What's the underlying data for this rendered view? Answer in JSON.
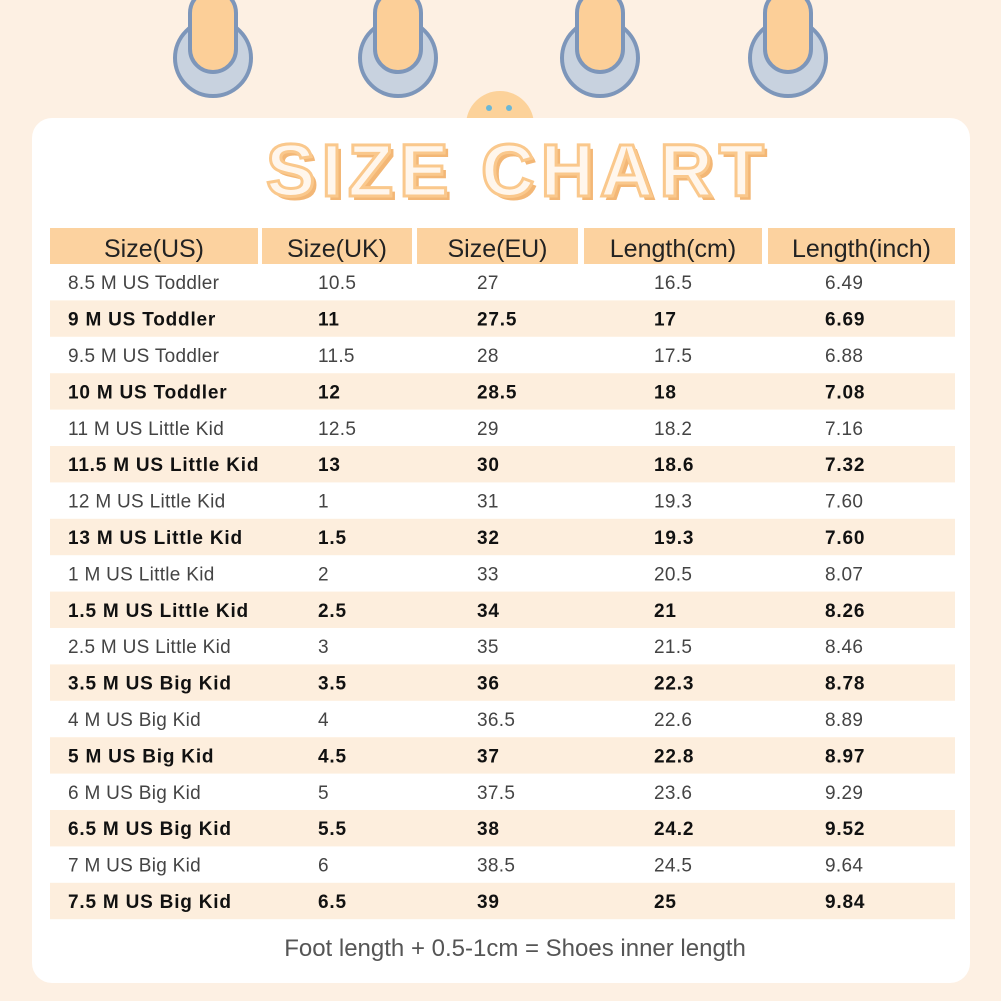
{
  "title": "SIZE CHART",
  "table": {
    "headers": [
      "Size(US)",
      "Size(UK)",
      "Size(EU)",
      "Length(cm)",
      "Length(inch)"
    ],
    "rows": [
      [
        "8.5 M US Toddler",
        "10.5",
        "27",
        "16.5",
        "6.49"
      ],
      [
        "9 M US Toddler",
        "11",
        "27.5",
        "17",
        "6.69"
      ],
      [
        "9.5 M US Toddler",
        "11.5",
        "28",
        "17.5",
        "6.88"
      ],
      [
        "10 M US Toddler",
        "12",
        "28.5",
        "18",
        "7.08"
      ],
      [
        "11 M US Little Kid",
        "12.5",
        "29",
        "18.2",
        "7.16"
      ],
      [
        "11.5 M US Little Kid",
        "13",
        "30",
        "18.6",
        "7.32"
      ],
      [
        "12 M US Little Kid",
        "1",
        "31",
        "19.3",
        "7.60"
      ],
      [
        "13 M US Little Kid",
        "1.5",
        "32",
        "19.3",
        "7.60"
      ],
      [
        "1 M US Little Kid",
        "2",
        "33",
        "20.5",
        "8.07"
      ],
      [
        "1.5 M US Little Kid",
        "2.5",
        "34",
        "21",
        "8.26"
      ],
      [
        "2.5 M US Little Kid",
        "3",
        "35",
        "21.5",
        "8.46"
      ],
      [
        "3.5 M US Big Kid",
        "3.5",
        "36",
        "22.3",
        "8.78"
      ],
      [
        "4 M US Big Kid",
        "4",
        "36.5",
        "22.6",
        "8.89"
      ],
      [
        "5 M US Big Kid",
        "4.5",
        "37",
        "22.8",
        "8.97"
      ],
      [
        "6 M US Big Kid",
        "5",
        "37.5",
        "23.6",
        "9.29"
      ],
      [
        "6.5 M US Big Kid",
        "5.5",
        "38",
        "24.2",
        "9.52"
      ],
      [
        "7 M US Big Kid",
        "6",
        "38.5",
        "24.5",
        "9.64"
      ],
      [
        "7.5 M US Big Kid",
        "6.5",
        "39",
        "25",
        "9.84"
      ]
    ]
  },
  "note": "Foot length + 0.5-1cm = Shoes inner length"
}
